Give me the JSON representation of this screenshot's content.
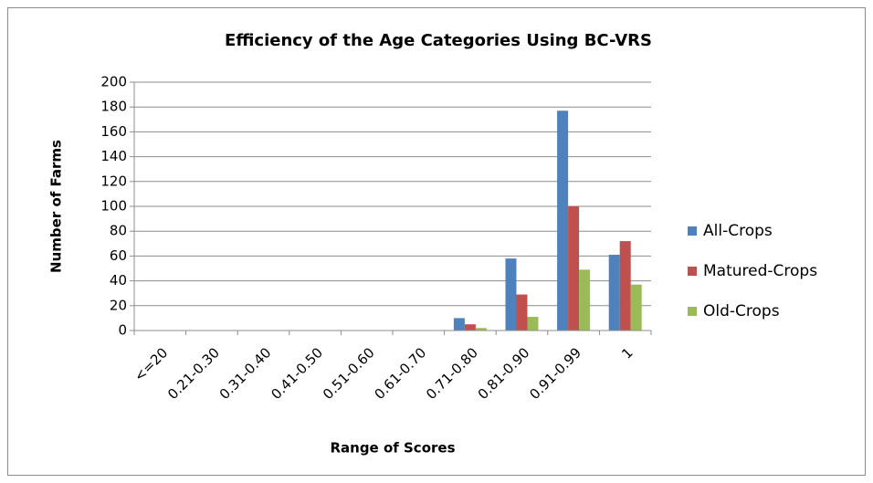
{
  "chart_data": {
    "type": "bar",
    "title": "Efficiency of the Age Categories Using BC-VRS",
    "x_label": "Range of Scores",
    "y_label": "Number of Farms",
    "categories": [
      "<=20",
      "0.21-0.30",
      "0.31-0.40",
      "0.41-0.50",
      "0.51-0.60",
      "0.61-0.70",
      "0.71-0.80",
      "0.81-0.90",
      "0.91-0.99",
      "1"
    ],
    "series": [
      {
        "name": "All-Crops",
        "color": "#4f81bd",
        "values": [
          0,
          0,
          0,
          0,
          0,
          0,
          10,
          58,
          177,
          61
        ]
      },
      {
        "name": "Matured-Crops",
        "color": "#c0504d",
        "values": [
          0,
          0,
          0,
          0,
          0,
          0,
          5,
          29,
          100,
          72
        ]
      },
      {
        "name": "Old-Crops",
        "color": "#9bbb59",
        "values": [
          0,
          0,
          0,
          0,
          0,
          0,
          2,
          11,
          49,
          37
        ]
      }
    ],
    "ylim": [
      0,
      200
    ],
    "yticks": [
      0,
      20,
      40,
      60,
      80,
      100,
      120,
      140,
      160,
      180,
      200
    ],
    "grid": true,
    "legend": "right"
  }
}
